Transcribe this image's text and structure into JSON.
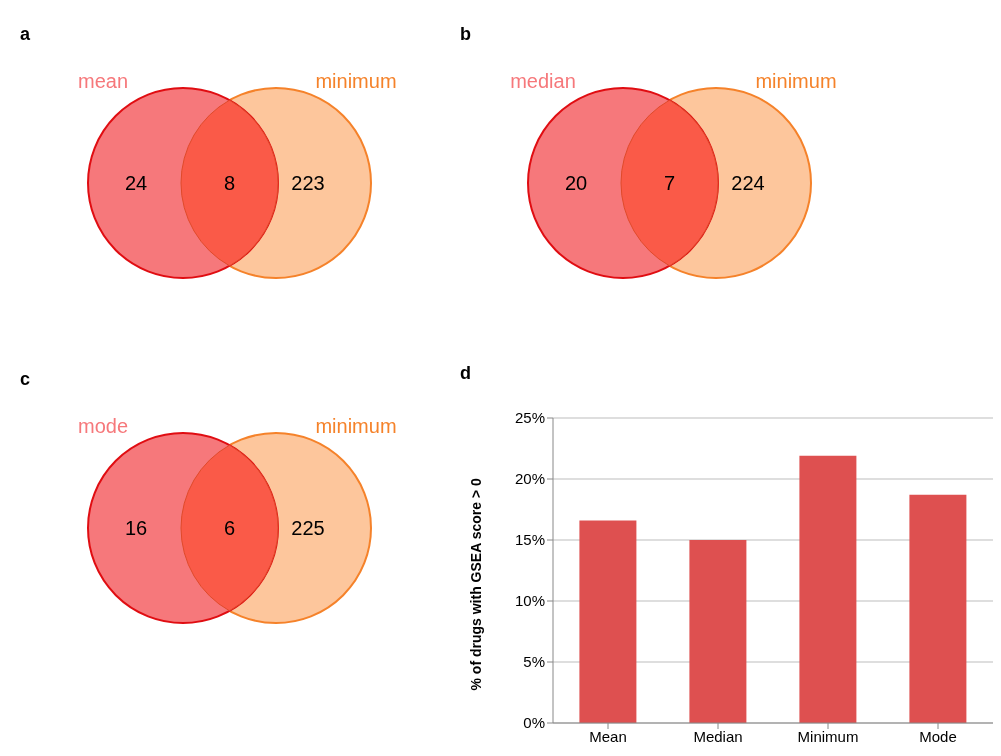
{
  "chart_data": [
    {
      "type": "other",
      "title": "a",
      "categories": [
        "mean",
        null,
        "minimum"
      ],
      "values": [
        24,
        8,
        223
      ],
      "data_labels": true,
      "colors": [
        "#f6787b",
        "#fa5a48",
        "#fdc69c"
      ]
    },
    {
      "type": "other",
      "title": "b",
      "categories": [
        "median",
        null,
        "minimum"
      ],
      "values": [
        20,
        7,
        224
      ],
      "data_labels": true,
      "colors": [
        "#f6787b",
        "#fa5a48",
        "#fdc69c"
      ]
    },
    {
      "type": "other",
      "title": "c",
      "categories": [
        "mode",
        null,
        "minimum"
      ],
      "values": [
        16,
        6,
        225
      ],
      "data_labels": true,
      "colors": [
        "#f6787b",
        "#fa5a48",
        "#fdc69c"
      ]
    },
    {
      "type": "bar",
      "title": "d",
      "categories": [
        "Mean",
        "Median",
        "Minimum",
        "Mode"
      ],
      "values": [
        16.6,
        15.0,
        21.9,
        18.7
      ],
      "color": "#de5050",
      "ylabel": "% of drugs with GSEA score > 0",
      "ylim": [
        0,
        25
      ],
      "yticks": [
        {
          "value": 0,
          "label": "0%"
        },
        {
          "value": 5,
          "label": "5%"
        },
        {
          "value": 10,
          "label": "10%"
        },
        {
          "value": 15,
          "label": "15%"
        },
        {
          "value": 20,
          "label": "20%"
        },
        {
          "value": 25,
          "label": "25%"
        }
      ],
      "grid": "y"
    }
  ]
}
